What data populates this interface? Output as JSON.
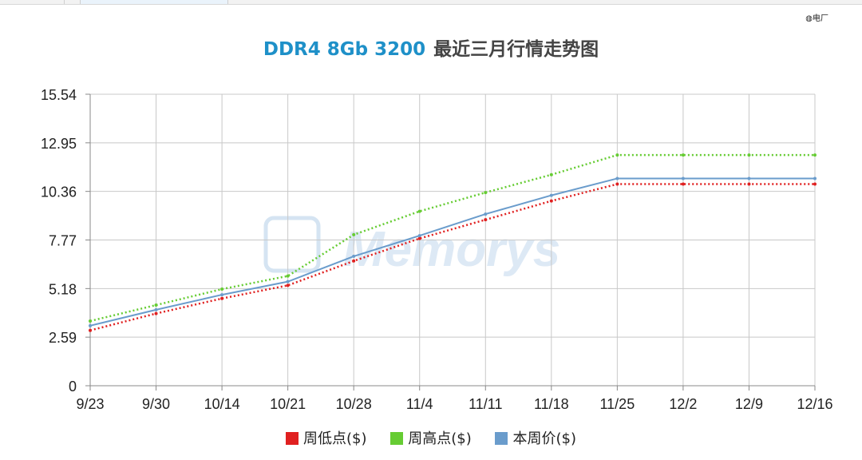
{
  "corner_text": "电厂",
  "title_part1": "DDR4 8Gb 3200",
  "title_part2": "最近三月行情走势图",
  "watermark": "Memorys",
  "colors": {
    "title_accent": "#1e90c8",
    "low": "#e02020",
    "high": "#66cc33",
    "current": "#6a9ccc",
    "grid": "#c8c8c8"
  },
  "chart_data": {
    "type": "line",
    "categories": [
      "9/23",
      "9/30",
      "10/14",
      "10/21",
      "10/28",
      "11/4",
      "11/11",
      "11/18",
      "11/25",
      "12/2",
      "12/9",
      "12/16"
    ],
    "y_ticks": [
      "0",
      "2.59",
      "5.18",
      "7.77",
      "10.36",
      "12.95",
      "15.54"
    ],
    "ylim": [
      0,
      15.54
    ],
    "grid": true,
    "legend_position": "bottom",
    "series": [
      {
        "name": "周低点($)",
        "style": "dotted",
        "color": "#e02020",
        "values": [
          2.95,
          3.85,
          4.65,
          5.35,
          6.65,
          7.85,
          8.85,
          9.85,
          10.75,
          10.75,
          10.75,
          10.75
        ]
      },
      {
        "name": "周高点($)",
        "style": "dotted",
        "color": "#66cc33",
        "values": [
          3.45,
          4.3,
          5.15,
          5.85,
          8.05,
          9.3,
          10.3,
          11.25,
          12.3,
          12.3,
          12.3,
          12.3
        ]
      },
      {
        "name": "本周价($)",
        "style": "solid",
        "color": "#6a9ccc",
        "values": [
          3.2,
          4.05,
          4.85,
          5.55,
          6.9,
          8.0,
          9.15,
          10.15,
          11.05,
          11.05,
          11.05,
          11.05
        ]
      }
    ]
  }
}
